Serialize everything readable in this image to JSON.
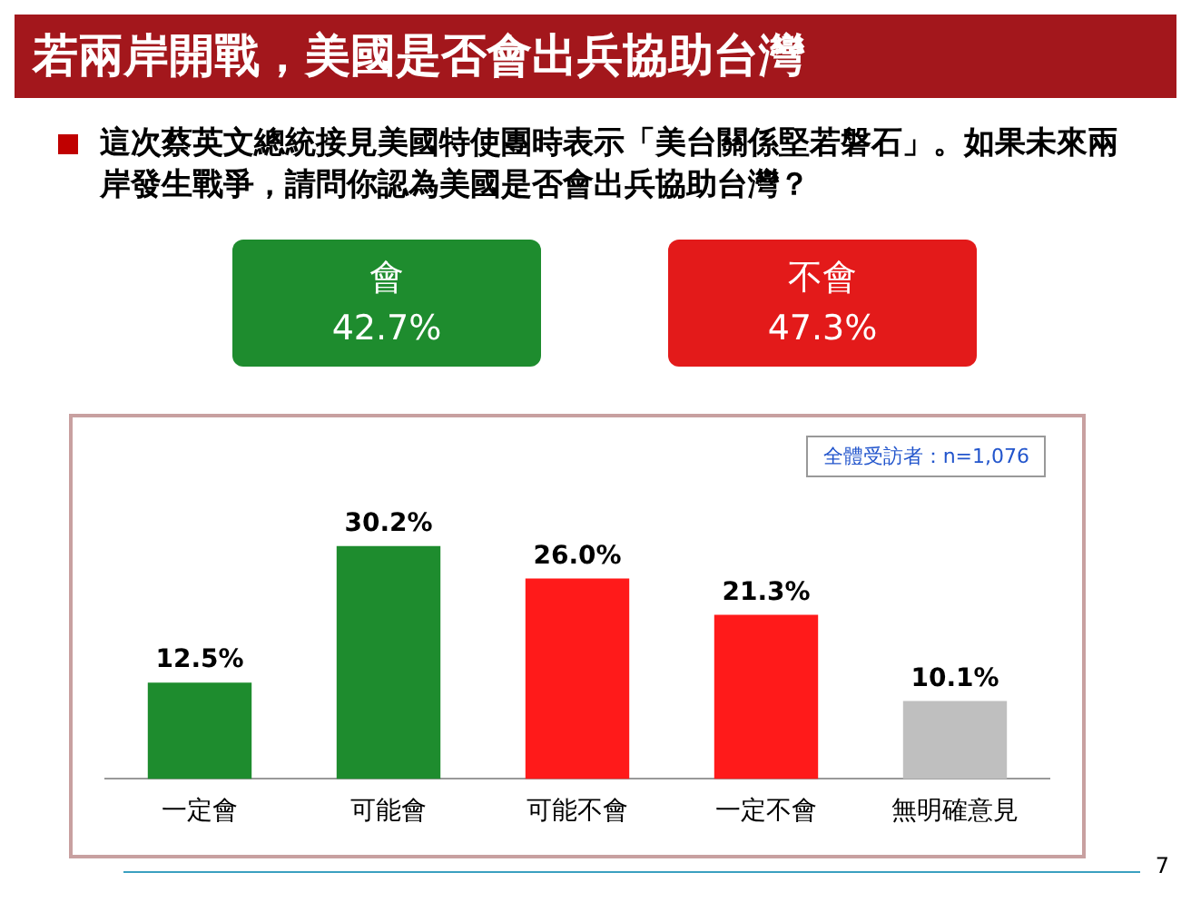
{
  "chart_data": {
    "type": "bar",
    "title": "若兩岸開戰，美國是否會出兵協助台灣",
    "subtitle": "這次蔡英文總統接見美國特使團時表示「美台關係堅若磐石」。如果未來兩岸發生戰爭，請問你認為美國是否會出兵協助台灣？",
    "categories": [
      "一定會",
      "可能會",
      "可能不會",
      "一定不會",
      "無明確意見"
    ],
    "values": [
      12.5,
      30.2,
      26.0,
      21.3,
      10.1
    ],
    "colors": [
      "#1e8c2e",
      "#1e8c2e",
      "#ff1a1a",
      "#ff1a1a",
      "#bfbfbf"
    ],
    "value_labels": [
      "12.5%",
      "30.2%",
      "26.0%",
      "21.3%",
      "10.1%"
    ],
    "annotations": [
      "會",
      "42.7%",
      "不會",
      "47.3%",
      "全體受訪者：n=1,076",
      "7"
    ],
    "grid": false,
    "legend": false
  }
}
